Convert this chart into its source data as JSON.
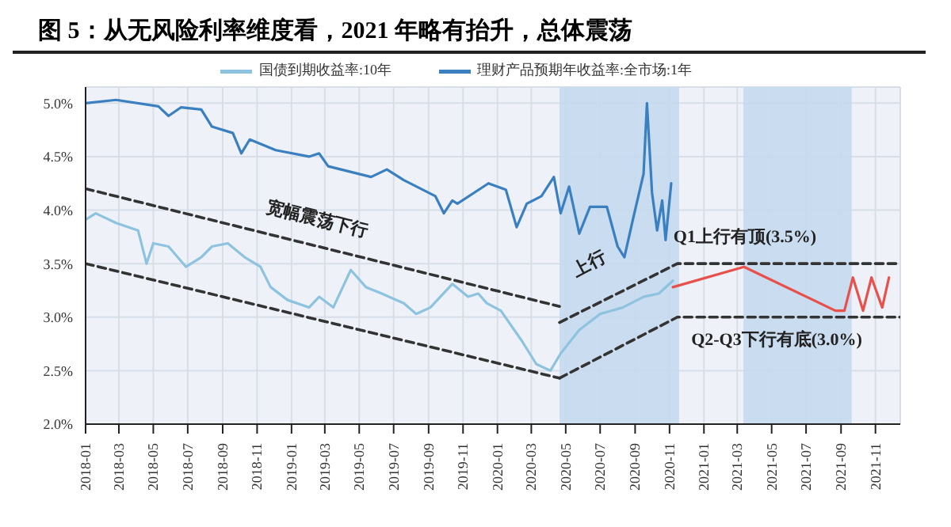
{
  "chart_data": {
    "type": "line",
    "title": "图 5：从无风险利率维度看，2021 年略有抬升，总体震荡",
    "xlim": [
      "2018-01-01",
      "2021-12-15"
    ],
    "xticks": [
      "2018-01",
      "2018-03",
      "2018-05",
      "2018-07",
      "2018-09",
      "2018-11",
      "2019-01",
      "2019-03",
      "2019-05",
      "2019-07",
      "2019-09",
      "2019-11",
      "2020-01",
      "2020-03",
      "2020-05",
      "2020-07",
      "2020-09",
      "2020-11",
      "2021-01",
      "2021-03",
      "2021-05",
      "2021-07",
      "2021-09",
      "2021-11"
    ],
    "ylim": [
      2,
      5.15
    ],
    "yticks": [
      {
        "value": 2,
        "label": "2.0%"
      },
      {
        "value": 2.5,
        "label": "2.5%"
      },
      {
        "value": 3,
        "label": "3.0%"
      },
      {
        "value": 3.5,
        "label": "3.5%"
      },
      {
        "value": 4,
        "label": "4.0%"
      },
      {
        "value": 4.5,
        "label": "4.5%"
      },
      {
        "value": 5,
        "label": "5.0%"
      }
    ],
    "grid": true,
    "legend": "top",
    "series": [
      {
        "name": "国债到期收益率:10年",
        "color": "#8ec3e0",
        "x": [
          "2018-01-01",
          "2018-01-19",
          "2018-02-24",
          "2018-04-04",
          "2018-04-19",
          "2018-05-01",
          "2018-05-28",
          "2018-06-28",
          "2018-07-25",
          "2018-08-13",
          "2018-09-10",
          "2018-10-10",
          "2018-11-07",
          "2018-11-25",
          "2018-12-25",
          "2019-02-01",
          "2019-02-19",
          "2019-03-16",
          "2019-04-16",
          "2019-05-13",
          "2019-06-10",
          "2019-07-19",
          "2019-08-10",
          "2019-09-04",
          "2019-10-13",
          "2019-11-10",
          "2019-11-28",
          "2019-12-13",
          "2020-01-07",
          "2020-02-13",
          "2020-03-10",
          "2020-04-04",
          "2020-04-22",
          "2020-05-25",
          "2020-07-01",
          "2020-08-10",
          "2020-09-16",
          "2020-10-13",
          "2020-11-07"
        ],
        "values": [
          3.91,
          3.97,
          3.88,
          3.81,
          3.5,
          3.69,
          3.66,
          3.47,
          3.56,
          3.66,
          3.69,
          3.56,
          3.47,
          3.28,
          3.16,
          3.09,
          3.19,
          3.09,
          3.44,
          3.28,
          3.22,
          3.13,
          3.03,
          3.09,
          3.31,
          3.19,
          3.22,
          3.13,
          3.06,
          2.78,
          2.56,
          2.5,
          2.66,
          2.88,
          3.03,
          3.09,
          3.19,
          3.22,
          3.34
        ]
      },
      {
        "name": "理财产品预期年收益率:全市场:1年",
        "color": "#3a7fc0",
        "x": [
          "2018-01-01",
          "2018-02-24",
          "2018-05-10",
          "2018-05-28",
          "2018-06-19",
          "2018-07-25",
          "2018-08-13",
          "2018-09-19",
          "2018-10-04",
          "2018-10-19",
          "2018-12-04",
          "2019-02-01",
          "2019-02-19",
          "2019-03-07",
          "2019-05-22",
          "2019-06-19",
          "2019-07-19",
          "2019-09-13",
          "2019-09-28",
          "2019-10-13",
          "2019-10-22",
          "2019-12-16",
          "2020-01-16",
          "2020-02-04",
          "2020-02-22",
          "2020-03-19",
          "2020-04-10",
          "2020-04-22",
          "2020-05-07",
          "2020-05-25",
          "2020-06-13",
          "2020-07-13",
          "2020-08-01",
          "2020-08-13",
          "2020-08-28",
          "2020-09-16",
          "2020-09-22",
          "2020-10-01",
          "2020-10-10",
          "2020-10-19",
          "2020-10-25",
          "2020-11-04"
        ],
        "values": [
          5.0,
          5.03,
          4.97,
          4.88,
          4.96,
          4.94,
          4.78,
          4.72,
          4.53,
          4.66,
          4.56,
          4.5,
          4.53,
          4.41,
          4.31,
          4.38,
          4.28,
          4.13,
          3.97,
          4.09,
          4.06,
          4.25,
          4.19,
          3.84,
          4.06,
          4.13,
          4.31,
          3.97,
          4.22,
          3.78,
          4.03,
          4.03,
          3.66,
          3.56,
          3.91,
          4.34,
          5.0,
          4.16,
          3.81,
          4.09,
          3.72,
          4.25
        ]
      },
      {
        "color": "#e8504b",
        "x": [
          "2020-11-07",
          "2021-03-13",
          "2021-08-22",
          "2021-09-07",
          "2021-09-22",
          "2021-10-10",
          "2021-10-25",
          "2021-11-13",
          "2021-11-25"
        ],
        "values": [
          3.28,
          3.47,
          3.06,
          3.06,
          3.37,
          3.06,
          3.37,
          3.09,
          3.37
        ]
      },
      {
        "color": "#333333",
        "line_style": "dashed",
        "x": [
          "2018-01-01",
          "2020-04-20"
        ],
        "values": [
          4.2,
          3.1
        ]
      },
      {
        "color": "#333333",
        "line_style": "dashed",
        "x": [
          "2018-01-01",
          "2020-04-20"
        ],
        "values": [
          3.5,
          2.43
        ]
      },
      {
        "color": "#333333",
        "line_style": "dashed",
        "x": [
          "2020-04-20",
          "2020-11-15",
          "2021-12-15"
        ],
        "values": [
          2.95,
          3.5,
          3.5
        ]
      },
      {
        "color": "#333333",
        "line_style": "dashed",
        "x": [
          "2020-04-20",
          "2020-11-15",
          "2021-12-15"
        ],
        "values": [
          2.43,
          3.0,
          3.0
        ]
      }
    ],
    "bands": [
      {
        "axis": "x",
        "from": "2020-04-20",
        "to": "2020-11-18",
        "color": "#c5d9ee"
      },
      {
        "axis": "x",
        "from": "2021-03-12",
        "to": "2021-09-20",
        "color": "#c5d9ee"
      }
    ],
    "annotations": [
      "宽幅震荡下行",
      "上行",
      "Q1上行有顶(3.5%)",
      "Q2-Q3下行有底(3.0%)"
    ]
  }
}
